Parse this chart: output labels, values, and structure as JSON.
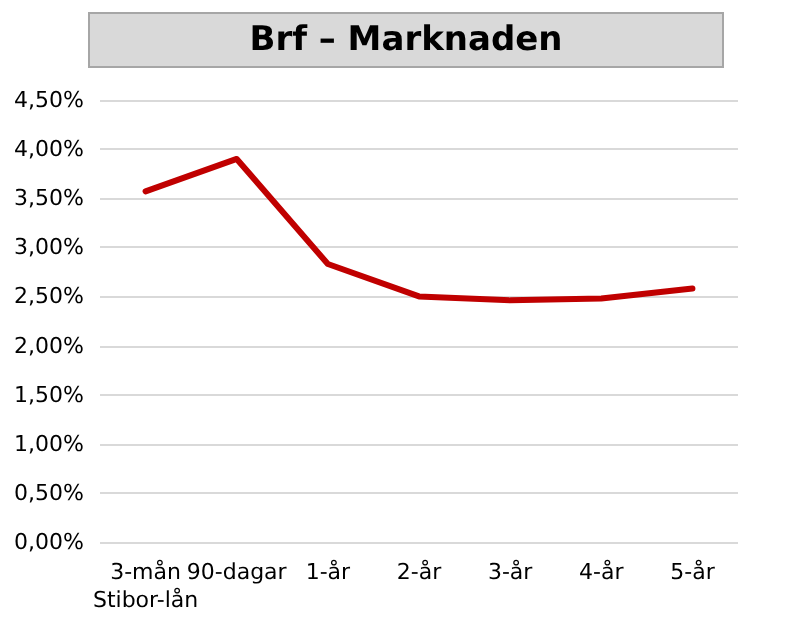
{
  "chart_data": {
    "type": "line",
    "title": "Brf – Marknaden",
    "categories": [
      "3-mån\nStibor-lån",
      "90-dagar",
      "1-år",
      "2-år",
      "3-år",
      "4-år",
      "5-år"
    ],
    "series": [
      {
        "color": "#c00000",
        "values": [
          3.57,
          3.9,
          2.83,
          2.5,
          2.46,
          2.48,
          2.58
        ]
      }
    ],
    "ylim": [
      0,
      4.5
    ],
    "yticks": [
      {
        "value": 0,
        "label": "0,00%"
      },
      {
        "value": 0.5,
        "label": "0,50%"
      },
      {
        "value": 1,
        "label": "1,00%"
      },
      {
        "value": 1.5,
        "label": "1,50%"
      },
      {
        "value": 2,
        "label": "2,00%"
      },
      {
        "value": 2.5,
        "label": "2,50%"
      },
      {
        "value": 3,
        "label": "3,00%"
      },
      {
        "value": 3.5,
        "label": "3,50%"
      },
      {
        "value": 4,
        "label": "4,00%"
      },
      {
        "value": 4.5,
        "label": "4,50%"
      }
    ],
    "grid": "y",
    "marker": "none",
    "line_style": "solid"
  }
}
